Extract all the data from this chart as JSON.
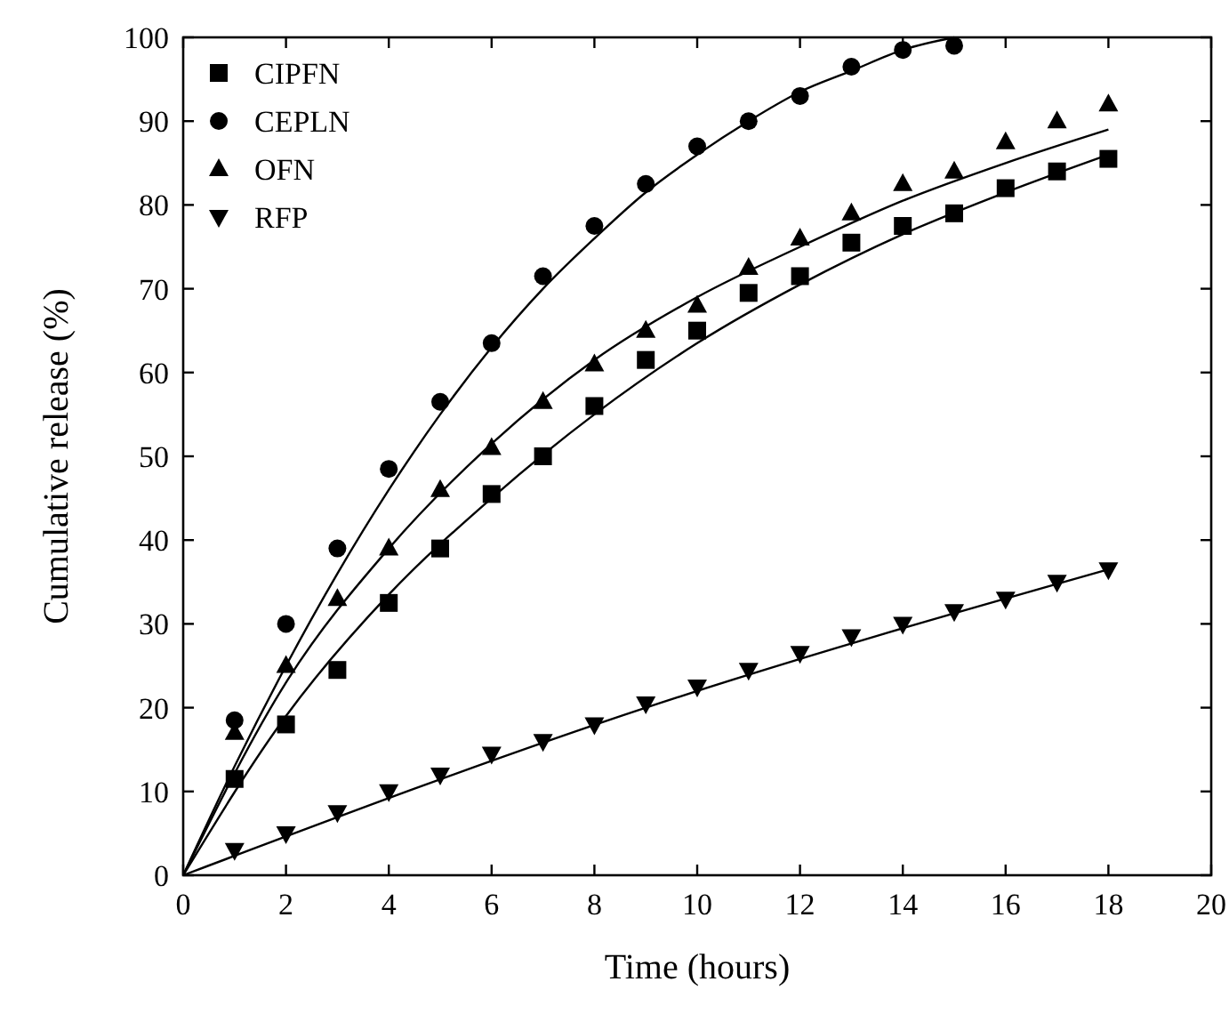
{
  "chart_data": {
    "type": "scatter",
    "xlabel": "Time (hours)",
    "ylabel": "Cumulative release (%)",
    "xlim": [
      0,
      20
    ],
    "ylim": [
      0,
      100
    ],
    "xticks": [
      0,
      2,
      4,
      6,
      8,
      10,
      12,
      14,
      16,
      18,
      20
    ],
    "yticks": [
      0,
      10,
      20,
      30,
      40,
      50,
      60,
      70,
      80,
      90,
      100
    ],
    "grid": false,
    "legend": "top left",
    "series": [
      {
        "name": "CIPFN",
        "color": "#000000",
        "marker": "square",
        "x": [
          1,
          2,
          3,
          4,
          5,
          6,
          7,
          8,
          9,
          10,
          11,
          12,
          13,
          14,
          15,
          16,
          17,
          18
        ],
        "values": [
          11.5,
          18,
          24.5,
          32.5,
          39,
          45.5,
          50,
          56,
          61.5,
          65,
          69.5,
          71.5,
          75.5,
          77.5,
          79,
          82,
          84,
          85.5
        ]
      },
      {
        "name": "CEPLN",
        "color": "#000000",
        "marker": "circle",
        "x": [
          1,
          2,
          3,
          4,
          5,
          6,
          7,
          8,
          9,
          10,
          11,
          12,
          13,
          14,
          15
        ],
        "values": [
          18.5,
          30,
          39,
          48.5,
          56.5,
          63.5,
          71.5,
          77.5,
          82.5,
          87,
          90,
          93,
          96.5,
          98.5,
          99
        ]
      },
      {
        "name": "OFN",
        "color": "#000000",
        "marker": "triangle",
        "x": [
          1,
          2,
          3,
          4,
          5,
          6,
          7,
          8,
          9,
          10,
          11,
          12,
          13,
          14,
          15,
          16,
          17,
          18
        ],
        "values": [
          17,
          25,
          33,
          39,
          46,
          51,
          56.5,
          61,
          65,
          68,
          72.5,
          76,
          79,
          82.5,
          84,
          87.5,
          90,
          92
        ]
      },
      {
        "name": "RFP",
        "color": "#000000",
        "marker": "triangle-down",
        "x": [
          1,
          2,
          3,
          4,
          5,
          6,
          7,
          8,
          9,
          10,
          11,
          12,
          13,
          14,
          15,
          16,
          17,
          18
        ],
        "values": [
          3,
          5,
          7.5,
          10,
          12,
          14.5,
          16,
          18,
          20.5,
          22.5,
          24.5,
          26.5,
          28.5,
          30,
          31.5,
          33,
          35,
          36.5
        ]
      },
      {
        "type": "line",
        "color": "#000000",
        "marker": "none",
        "line_style": "solid",
        "x": [
          0,
          1,
          2,
          3,
          4,
          5,
          6,
          7,
          8,
          9,
          10,
          11,
          12,
          13,
          14,
          15
        ],
        "values": [
          0,
          13,
          25,
          36,
          46,
          55,
          63,
          70,
          76,
          81.5,
          86,
          90,
          93.5,
          96,
          98.5,
          100
        ]
      },
      {
        "type": "line",
        "color": "#000000",
        "marker": "none",
        "line_style": "solid",
        "x": [
          0,
          2,
          4,
          6,
          8,
          10,
          12,
          14,
          16,
          18
        ],
        "values": [
          0,
          19,
          33.5,
          45,
          55,
          63.5,
          70.5,
          76.5,
          81.5,
          86
        ]
      },
      {
        "type": "line",
        "color": "#000000",
        "marker": "none",
        "line_style": "solid",
        "x": [
          0,
          2,
          4,
          6,
          8,
          10,
          12,
          14,
          16,
          18
        ],
        "values": [
          0,
          23,
          39,
          51.5,
          61.5,
          69,
          75,
          80.5,
          85,
          89
        ]
      },
      {
        "type": "line",
        "color": "#000000",
        "marker": "none",
        "line_style": "solid",
        "x": [
          0,
          9,
          18
        ],
        "values": [
          0,
          20,
          36.5
        ]
      }
    ]
  }
}
